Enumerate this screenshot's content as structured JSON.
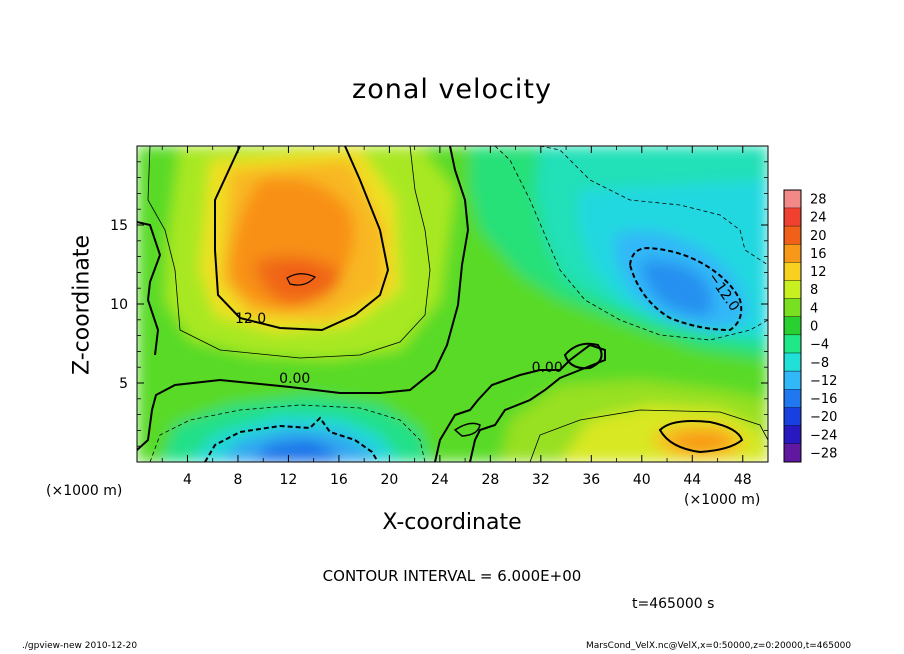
{
  "title": "zonal velocity",
  "axes": {
    "xlabel": "X-coordinate",
    "ylabel": "Z-coordinate",
    "x_unit_left": "(×1000 m)",
    "x_unit_right": "(×1000 m)"
  },
  "notes": {
    "contour_interval": "CONTOUR INTERVAL = 6.000E+00",
    "time": "t=465000 s",
    "footer_left": "./gpview-new  2010-12-20",
    "footer_right": "MarsCond_VelX.nc@VelX,x=0:50000,z=0:20000,t=465000"
  },
  "chart_data": {
    "type": "heatmap",
    "title": "zonal velocity",
    "xlabel": "X-coordinate",
    "ylabel": "Z-coordinate",
    "x_unit": "(×1000 m)",
    "xlim": [
      0,
      50
    ],
    "ylim": [
      0,
      20
    ],
    "x_ticks": [
      4,
      8,
      12,
      16,
      20,
      24,
      28,
      32,
      36,
      40,
      44,
      48
    ],
    "y_ticks": [
      5,
      10,
      15
    ],
    "colorbar_levels": [
      28,
      24,
      20,
      16,
      12,
      8,
      4,
      0,
      -4,
      -8,
      -12,
      -16,
      -20,
      -24,
      -28
    ],
    "colorbar_labels": [
      "28",
      "24",
      "20",
      "16",
      "12",
      "8",
      "4",
      "0",
      "−4",
      "−8",
      "−12",
      "−16",
      "−20",
      "−24",
      "−28"
    ],
    "contour_interval": 6,
    "contour_labels": [
      {
        "text": "12.0",
        "x": 9.0,
        "y": 8.8
      },
      {
        "text": "0.00",
        "x": 12.5,
        "y": 5.0
      },
      {
        "text": "0.00",
        "x": 32.5,
        "y": 5.7
      },
      {
        "text": "−12.0",
        "x": 46.2,
        "y": 10.6
      }
    ],
    "features": [
      {
        "kind": "max",
        "x": 13,
        "y": 12,
        "approx_value": 18
      },
      {
        "kind": "max",
        "x": 44,
        "y": 1.5,
        "approx_value": 14
      },
      {
        "kind": "min",
        "x": 44,
        "y": 11,
        "approx_value": -15
      },
      {
        "kind": "min",
        "x": 12,
        "y": 1,
        "approx_value": -16
      }
    ],
    "colors": {
      "28": "#f28888",
      "24": "#f04030",
      "20": "#f06018",
      "16": "#f89818",
      "12": "#f8d020",
      "8": "#c8f020",
      "4": "#78e020",
      "0": "#28d030",
      "-4": "#20e888",
      "-8": "#20e0d8",
      "-12": "#30b8f8",
      "-16": "#2078f0",
      "-20": "#1840e0",
      "-24": "#2818c0",
      "-28": "#6018a0"
    }
  }
}
